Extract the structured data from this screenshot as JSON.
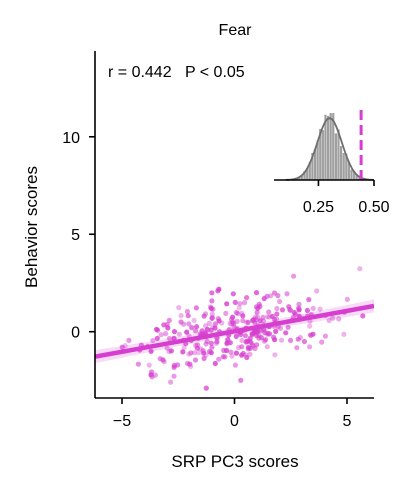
{
  "chart_data": {
    "type": "scatter",
    "title": "Fear",
    "xlabel": "SRP PC3 scores",
    "ylabel": "Behavior scores",
    "annotation": "r = 0.442   P < 0.05",
    "xlim": [
      -6.2,
      6.2
    ],
    "ylim": [
      -3.4,
      14.4
    ],
    "xticks": [
      -5,
      0,
      5
    ],
    "xtick_labels": [
      "−5",
      "0",
      "5"
    ],
    "yticks": [
      0,
      5,
      10
    ],
    "ytick_labels": [
      "0",
      "5",
      "10"
    ],
    "grid": false,
    "color": "#d63ecf",
    "regression": {
      "slope": 0.21,
      "intercept": 0.02
    },
    "n_points": 300,
    "inset": {
      "type": "histogram",
      "xlim": [
        0.05,
        0.5
      ],
      "xticks": [
        0.25,
        0.5
      ],
      "xtick_labels": [
        "0.25",
        "0.50"
      ],
      "hist_color": "#7f7f7f",
      "distribution_mean": 0.3,
      "distribution_sd": 0.055,
      "observed_r": 0.442,
      "observed_color": "#d63ecf"
    }
  }
}
